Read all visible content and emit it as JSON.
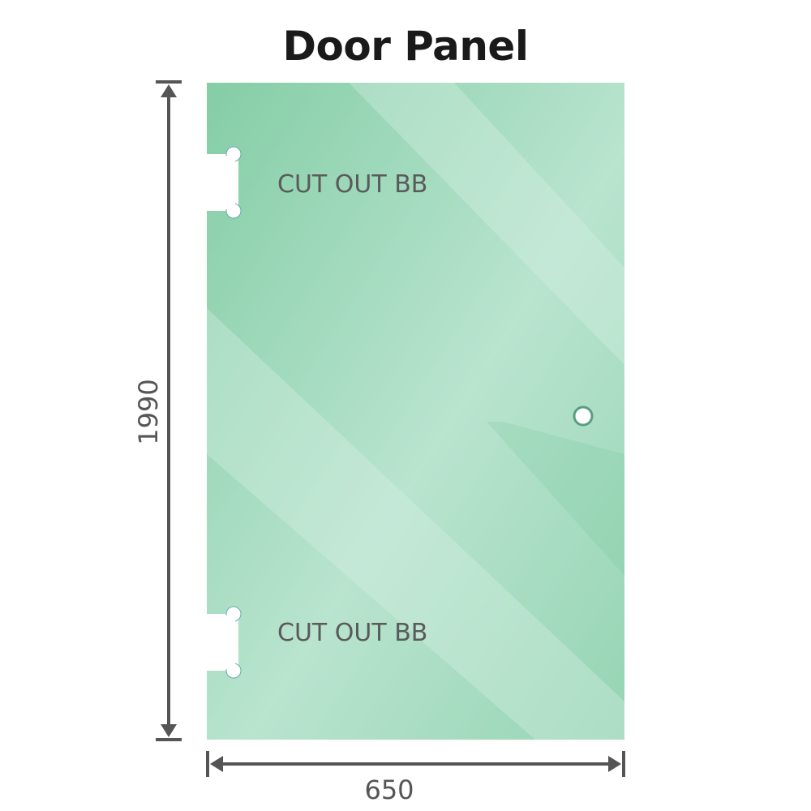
{
  "title": "Door Panel",
  "dimensions": {
    "height": "1990",
    "width": "650"
  },
  "cutouts": [
    {
      "label": "CUT OUT BB"
    },
    {
      "label": "CUT OUT BB"
    }
  ],
  "colors": {
    "glass": "#86cfa9",
    "glass_light": "#bde6d2",
    "dimension_line": "#555555"
  }
}
